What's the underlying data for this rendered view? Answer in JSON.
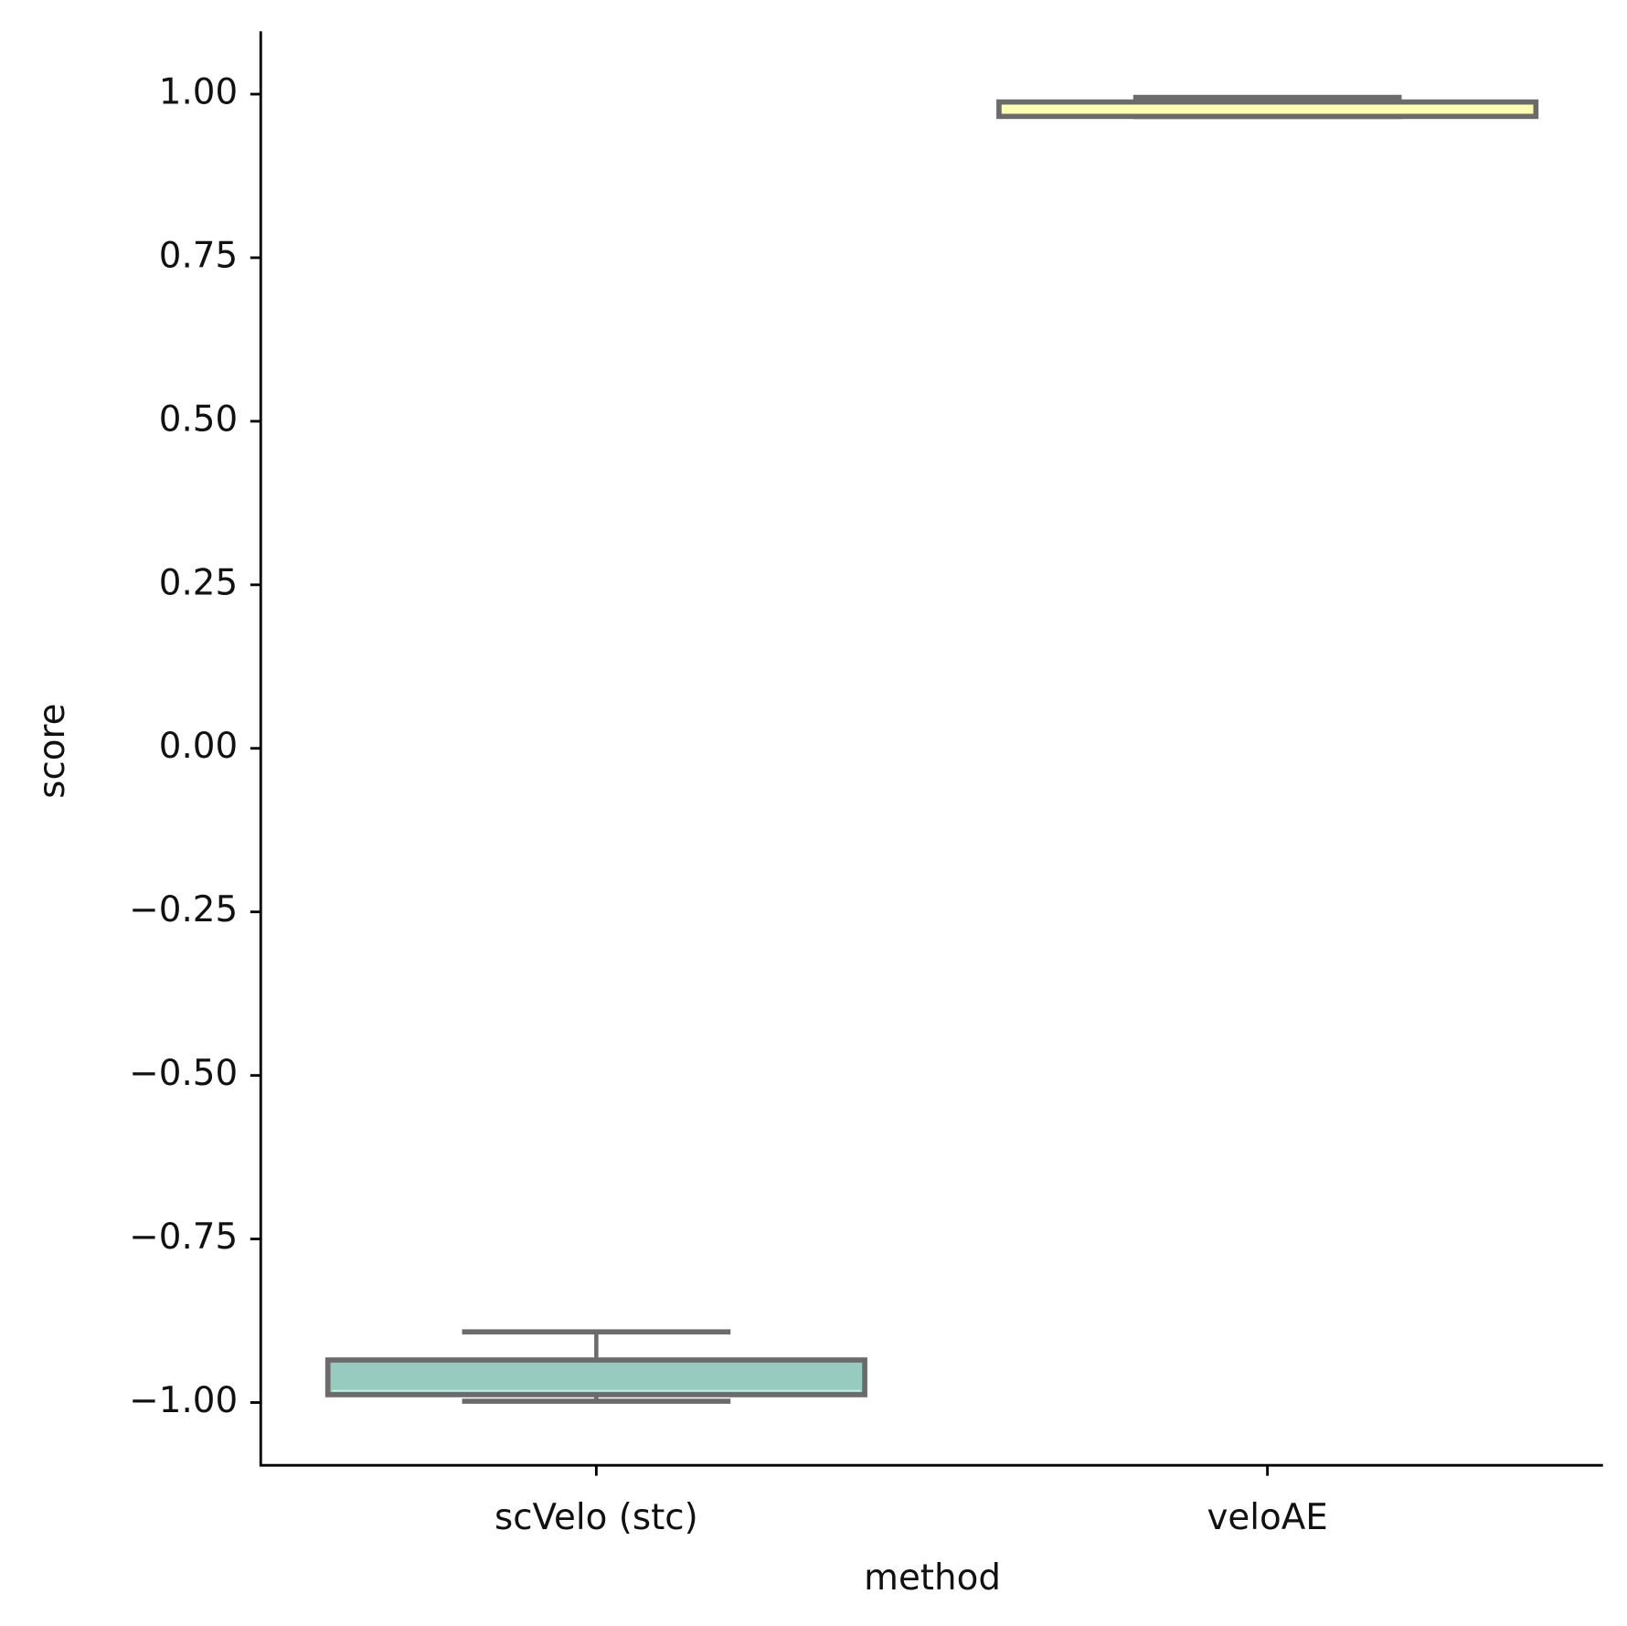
{
  "chart_data": {
    "type": "box",
    "x_label": "method",
    "y_label": "score",
    "categories": [
      "scVelo (stc)",
      "veloAE"
    ],
    "colors": [
      "#97cbc0",
      "#ffffb3"
    ],
    "boxes": [
      {
        "min": -0.998,
        "q1": -0.988,
        "median": -0.982,
        "q3": -0.935,
        "max": -0.892
      },
      {
        "min": 0.966,
        "q1": 0.966,
        "median": 0.973,
        "q3": 0.988,
        "max": 0.995
      }
    ],
    "ylim": [
      -1.096,
      1.096
    ],
    "yticks": [
      {
        "value": -1,
        "label": "−1.00"
      },
      {
        "value": -0.75,
        "label": "−0.75"
      },
      {
        "value": -0.5,
        "label": "−0.50"
      },
      {
        "value": -0.25,
        "label": "−0.25"
      },
      {
        "value": 0,
        "label": "0.00"
      },
      {
        "value": 0.25,
        "label": "0.25"
      },
      {
        "value": 0.5,
        "label": "0.50"
      },
      {
        "value": 0.75,
        "label": "0.75"
      },
      {
        "value": 1,
        "label": "1.00"
      }
    ]
  }
}
